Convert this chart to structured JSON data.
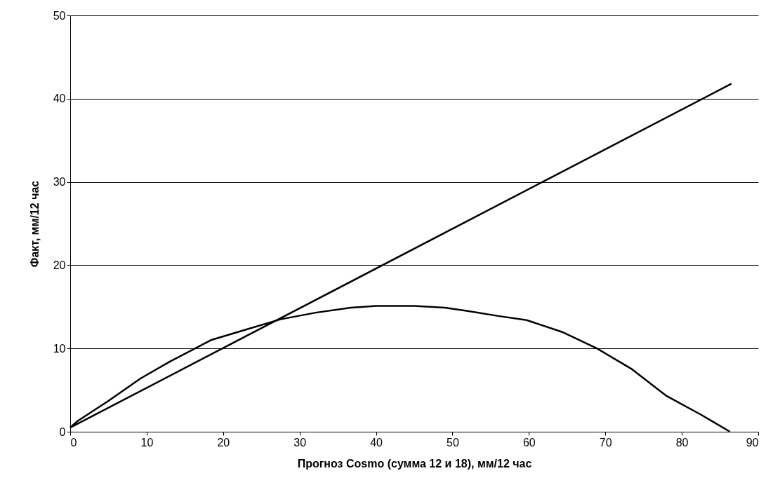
{
  "chart_data": {
    "type": "line",
    "xlabel": "Прогноз Cosmo  (сумма 12 и 18), мм/12 час",
    "ylabel": "Факт, мм/12 час",
    "xlim": [
      0,
      90
    ],
    "xticks": [
      0,
      10,
      20,
      30,
      40,
      50,
      60,
      70,
      80,
      90
    ],
    "ylim": [
      0,
      50
    ],
    "yticks": [
      0,
      10,
      20,
      30,
      40,
      50
    ],
    "grid": "y",
    "line_style": "solid",
    "series": [
      {
        "color": "#000000",
        "x": [
          0,
          86.5
        ],
        "values": [
          0.5,
          41.8
        ]
      },
      {
        "color": "#000000",
        "x": [
          0,
          1,
          5,
          9.2,
          13,
          18.4,
          22,
          27.5,
          32.1,
          36.7,
          40,
          45,
          49,
          52,
          56,
          59.7,
          64.3,
          68.9,
          73.5,
          78,
          82.6,
          86.3
        ],
        "values": [
          0.5,
          1.3,
          3.7,
          6.4,
          8.4,
          11,
          12,
          13.5,
          14.3,
          14.9,
          15.1,
          15.1,
          14.9,
          14.5,
          13.9,
          13.4,
          12,
          10,
          7.5,
          4.3,
          2.0,
          0
        ]
      }
    ]
  }
}
